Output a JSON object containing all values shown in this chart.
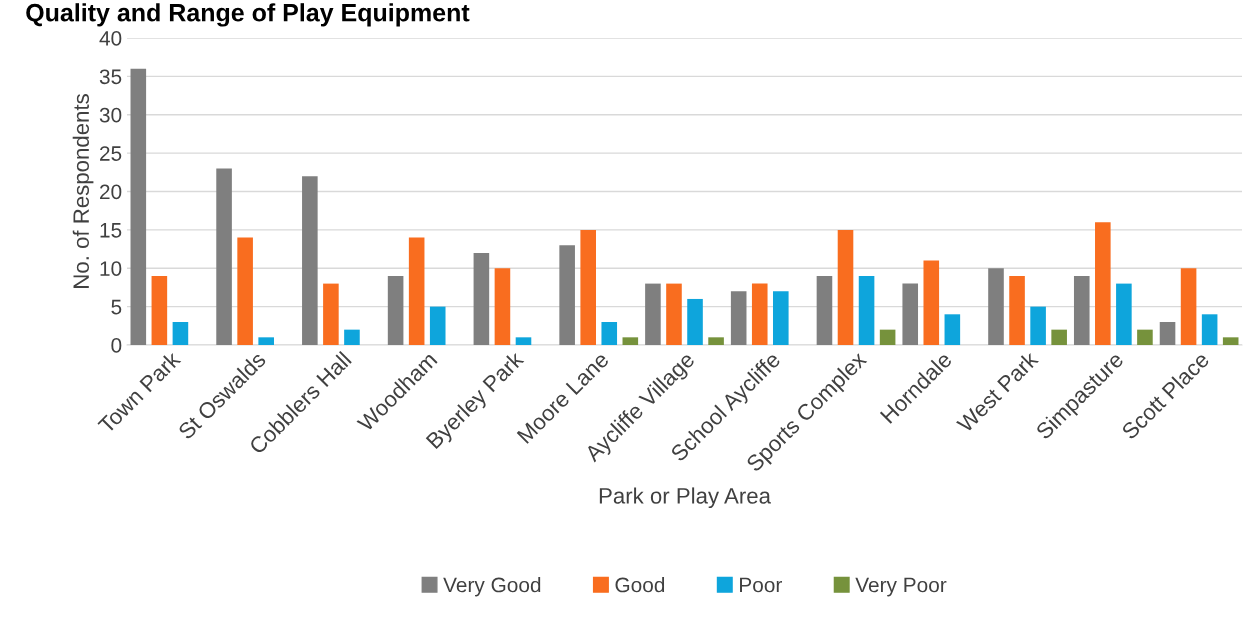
{
  "chart_data": {
    "type": "bar",
    "title": "Quality and Range of Play Equipment",
    "xlabel": "Park or Play Area",
    "ylabel": "No. of Respondents",
    "categories": [
      "Town Park",
      "St Oswalds",
      "Cobblers Hall",
      "Woodham",
      "Byerley Park",
      "Moore Lane",
      "Aycliffe Village",
      "School Aycliffe",
      "Sports Complex",
      "Horndale",
      "West Park",
      "Simpasture",
      "Scott Place"
    ],
    "series": [
      {
        "name": "Very Good",
        "color": "#7f7f7f",
        "values": [
          36,
          23,
          22,
          9,
          12,
          13,
          8,
          7,
          9,
          8,
          10,
          9,
          3
        ]
      },
      {
        "name": "Good",
        "color": "#f96d1f",
        "values": [
          9,
          14,
          8,
          14,
          10,
          15,
          8,
          8,
          15,
          11,
          9,
          16,
          10
        ]
      },
      {
        "name": "Poor",
        "color": "#0ea5dc",
        "values": [
          3,
          1,
          2,
          5,
          1,
          3,
          6,
          7,
          9,
          4,
          5,
          8,
          4
        ]
      },
      {
        "name": "Very Poor",
        "color": "#76923c",
        "values": [
          0,
          0,
          0,
          0,
          0,
          1,
          1,
          0,
          2,
          0,
          2,
          2,
          1
        ]
      }
    ],
    "ylim": [
      0,
      40
    ],
    "yticks": [
      0,
      5,
      10,
      15,
      20,
      25,
      30,
      35,
      40
    ],
    "grid": "y",
    "legend": "bottom"
  }
}
